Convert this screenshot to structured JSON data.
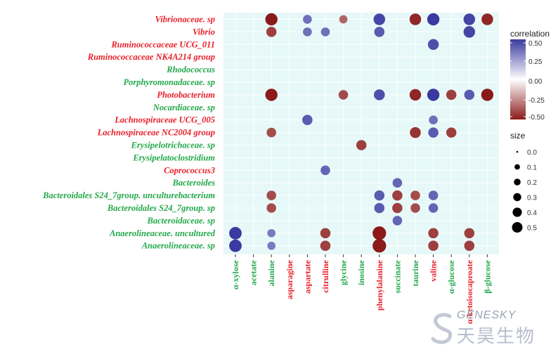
{
  "chart_data": {
    "type": "bubble-heatmap",
    "rows": [
      {
        "label": "Vibrionaceae. sp",
        "color": "#e8202a"
      },
      {
        "label": "Vibrio",
        "color": "#e8202a"
      },
      {
        "label": "Ruminococcaceae UCG_011",
        "color": "#e8202a"
      },
      {
        "label": "Ruminococcaceae NK4A214 group",
        "color": "#e8202a"
      },
      {
        "label": "Rhodococcus",
        "color": "#22a84a"
      },
      {
        "label": "Porphyromonadaceae. sp",
        "color": "#22a84a"
      },
      {
        "label": "Photobacterium",
        "color": "#e8202a"
      },
      {
        "label": "Nocardiaceae. sp",
        "color": "#22a84a"
      },
      {
        "label": "Lachnospiraceae UCG_005",
        "color": "#e8202a"
      },
      {
        "label": "Lachnospiraceae NC2004 group",
        "color": "#e8202a"
      },
      {
        "label": "Erysipelotrichaceae. sp",
        "color": "#22a84a"
      },
      {
        "label": "Erysipelatoclostridium",
        "color": "#22a84a"
      },
      {
        "label": "Coprococcus3",
        "color": "#e8202a"
      },
      {
        "label": "Bacteroides",
        "color": "#22a84a"
      },
      {
        "label": "Bacteroidales S24_7group. unculturebacterium",
        "color": "#22a84a"
      },
      {
        "label": "Bacteroidales S24_7group. sp",
        "color": "#22a84a"
      },
      {
        "label": "Bacteroidaceae. sp",
        "color": "#22a84a"
      },
      {
        "label": "Anaerolineaceae. uncultured",
        "color": "#22a84a"
      },
      {
        "label": "Anaerolineaceae. sp",
        "color": "#22a84a"
      }
    ],
    "columns": [
      {
        "label": "α-xylose",
        "color": "#22a84a"
      },
      {
        "label": "acetate",
        "color": "#22a84a"
      },
      {
        "label": "alanine",
        "color": "#22a84a"
      },
      {
        "label": "asparagine",
        "color": "#e8202a"
      },
      {
        "label": "aspartate",
        "color": "#e8202a"
      },
      {
        "label": "citrulline",
        "color": "#e8202a"
      },
      {
        "label": "glycine",
        "color": "#22a84a"
      },
      {
        "label": "inosine",
        "color": "#22a84a"
      },
      {
        "label": "phenylalanine",
        "color": "#e8202a"
      },
      {
        "label": "succinate",
        "color": "#22a84a"
      },
      {
        "label": "taurine",
        "color": "#22a84a"
      },
      {
        "label": "valine",
        "color": "#e8202a"
      },
      {
        "label": "α-glucose",
        "color": "#22a84a"
      },
      {
        "label": "α-ketoisocaproate",
        "color": "#e8202a"
      },
      {
        "label": "β-glucose",
        "color": "#22a84a"
      }
    ],
    "points": [
      {
        "row": 0,
        "col": 2,
        "r": -0.6
      },
      {
        "row": 0,
        "col": 4,
        "r": 0.35
      },
      {
        "row": 0,
        "col": 6,
        "r": -0.3
      },
      {
        "row": 0,
        "col": 8,
        "r": 0.55
      },
      {
        "row": 0,
        "col": 10,
        "r": -0.55
      },
      {
        "row": 0,
        "col": 11,
        "r": 0.6
      },
      {
        "row": 0,
        "col": 13,
        "r": 0.55
      },
      {
        "row": 0,
        "col": 14,
        "r": -0.55
      },
      {
        "row": 1,
        "col": 2,
        "r": -0.45
      },
      {
        "row": 1,
        "col": 4,
        "r": 0.35
      },
      {
        "row": 1,
        "col": 5,
        "r": 0.35
      },
      {
        "row": 1,
        "col": 8,
        "r": 0.45
      },
      {
        "row": 1,
        "col": 13,
        "r": 0.55
      },
      {
        "row": 2,
        "col": 11,
        "r": 0.5
      },
      {
        "row": 6,
        "col": 2,
        "r": -0.6
      },
      {
        "row": 6,
        "col": 6,
        "r": -0.4
      },
      {
        "row": 6,
        "col": 8,
        "r": 0.5
      },
      {
        "row": 6,
        "col": 10,
        "r": -0.55
      },
      {
        "row": 6,
        "col": 11,
        "r": 0.6
      },
      {
        "row": 6,
        "col": 12,
        "r": -0.45
      },
      {
        "row": 6,
        "col": 13,
        "r": 0.45
      },
      {
        "row": 6,
        "col": 14,
        "r": -0.6
      },
      {
        "row": 8,
        "col": 4,
        "r": 0.45
      },
      {
        "row": 8,
        "col": 11,
        "r": 0.35
      },
      {
        "row": 9,
        "col": 2,
        "r": -0.4
      },
      {
        "row": 9,
        "col": 10,
        "r": -0.5
      },
      {
        "row": 9,
        "col": 11,
        "r": 0.45
      },
      {
        "row": 9,
        "col": 12,
        "r": -0.45
      },
      {
        "row": 10,
        "col": 7,
        "r": -0.45
      },
      {
        "row": 12,
        "col": 5,
        "r": 0.4
      },
      {
        "row": 13,
        "col": 9,
        "r": 0.4
      },
      {
        "row": 14,
        "col": 2,
        "r": -0.4
      },
      {
        "row": 14,
        "col": 8,
        "r": 0.45
      },
      {
        "row": 14,
        "col": 9,
        "r": -0.45
      },
      {
        "row": 14,
        "col": 10,
        "r": -0.4
      },
      {
        "row": 14,
        "col": 11,
        "r": 0.4
      },
      {
        "row": 15,
        "col": 2,
        "r": -0.4
      },
      {
        "row": 15,
        "col": 8,
        "r": 0.45
      },
      {
        "row": 15,
        "col": 9,
        "r": -0.45
      },
      {
        "row": 15,
        "col": 10,
        "r": -0.4
      },
      {
        "row": 15,
        "col": 11,
        "r": 0.4
      },
      {
        "row": 16,
        "col": 9,
        "r": 0.4
      },
      {
        "row": 17,
        "col": 0,
        "r": 0.62
      },
      {
        "row": 17,
        "col": 2,
        "r": 0.3
      },
      {
        "row": 17,
        "col": 5,
        "r": -0.45
      },
      {
        "row": 17,
        "col": 8,
        "r": -0.7
      },
      {
        "row": 17,
        "col": 11,
        "r": -0.45
      },
      {
        "row": 17,
        "col": 13,
        "r": -0.45
      },
      {
        "row": 18,
        "col": 0,
        "r": 0.62
      },
      {
        "row": 18,
        "col": 2,
        "r": 0.3
      },
      {
        "row": 18,
        "col": 5,
        "r": -0.45
      },
      {
        "row": 18,
        "col": 8,
        "r": -0.7
      },
      {
        "row": 18,
        "col": 11,
        "r": -0.45
      },
      {
        "row": 18,
        "col": 13,
        "r": -0.45
      }
    ],
    "color_legend": {
      "title": "correlation",
      "ticks": [
        "0.50",
        "0.25",
        "0.00",
        "-0.25",
        "-0.50"
      ],
      "range": [
        -0.5,
        0.5
      ],
      "low_color": "#8b1a1a",
      "mid_color": "#ffffff",
      "high_color": "#3a3aa0"
    },
    "size_legend": {
      "title": "size",
      "ticks": [
        "0.0",
        "0.1",
        "0.2",
        "0.3",
        "0.4",
        "0.5"
      ]
    },
    "background": "#e6f8f8",
    "grid": true
  },
  "watermark": {
    "en": "GENESKY",
    "cn": "天昊生物"
  }
}
